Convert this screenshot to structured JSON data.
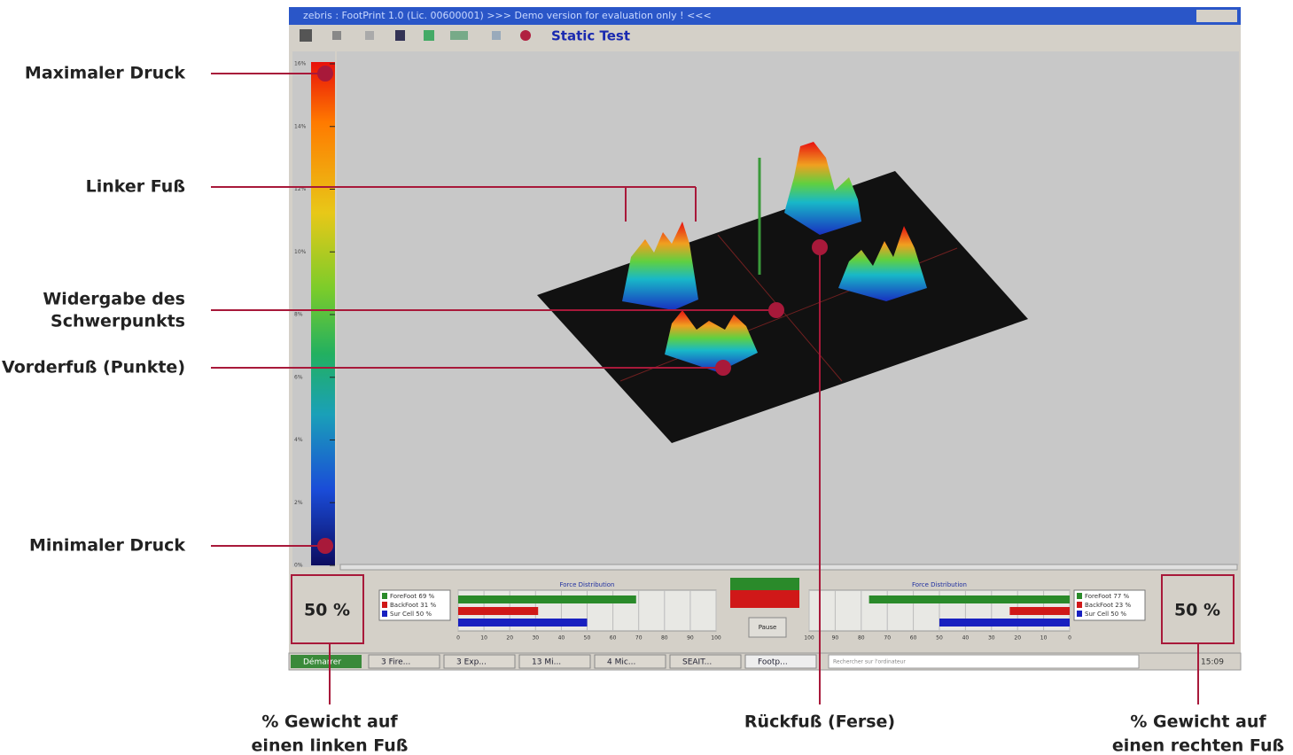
{
  "annotations": {
    "maximaler_druck": "Maximaler Druck",
    "linker_fuss": "Linker Fuß",
    "schwerpunkt": [
      "Widergabe des",
      "Schwerpunkts"
    ],
    "vorderfuss": "Vorderfuß (Punkte)",
    "minimaler_druck": "Minimaler Druck",
    "gewicht_links": [
      "% Gewicht auf",
      "einen linken Fuß"
    ],
    "rueckfuss": "Rückfuß (Ferse)",
    "gewicht_rechts": [
      "% Gewicht auf",
      "einen rechten Fuß"
    ]
  },
  "window": {
    "title": "zebris : FootPrint 1.0 (Lic. 00600001) >>> Demo version for evaluation only ! <<<",
    "toolbar_label": "Static Test"
  },
  "scale": {
    "labels": [
      "16%",
      "14%",
      "12%",
      "10%",
      "8%",
      "6%",
      "4%",
      "2%",
      "0%"
    ]
  },
  "panels": {
    "left": {
      "weight": "50 %",
      "heading": "Force Distribution",
      "legend": [
        "ForeFoot 69 %",
        "BackFoot 31 %",
        "Sur Cell 50 %"
      ],
      "values": [
        69,
        31,
        50
      ],
      "ticks": [
        0,
        10,
        20,
        30,
        40,
        50,
        60,
        70,
        80,
        90,
        100
      ]
    },
    "right": {
      "weight": "50 %",
      "heading": "Force Distribution",
      "legend": [
        "ForeFoot 77 %",
        "BackFoot 23 %",
        "Sur Cell 50 %"
      ],
      "values": [
        77,
        23,
        50
      ],
      "ticks": [
        100,
        90,
        80,
        70,
        60,
        50,
        40,
        30,
        20,
        10,
        0
      ]
    },
    "button": "Pause"
  },
  "taskbar": {
    "start": "Démarrer",
    "items": [
      "3 Fire...",
      "3 Exp...",
      "13 Mi...",
      "4 Mic...",
      "SEAIT...",
      "Footp..."
    ],
    "search": "Rechercher sur l'ordinateur",
    "clock": "15:09"
  }
}
